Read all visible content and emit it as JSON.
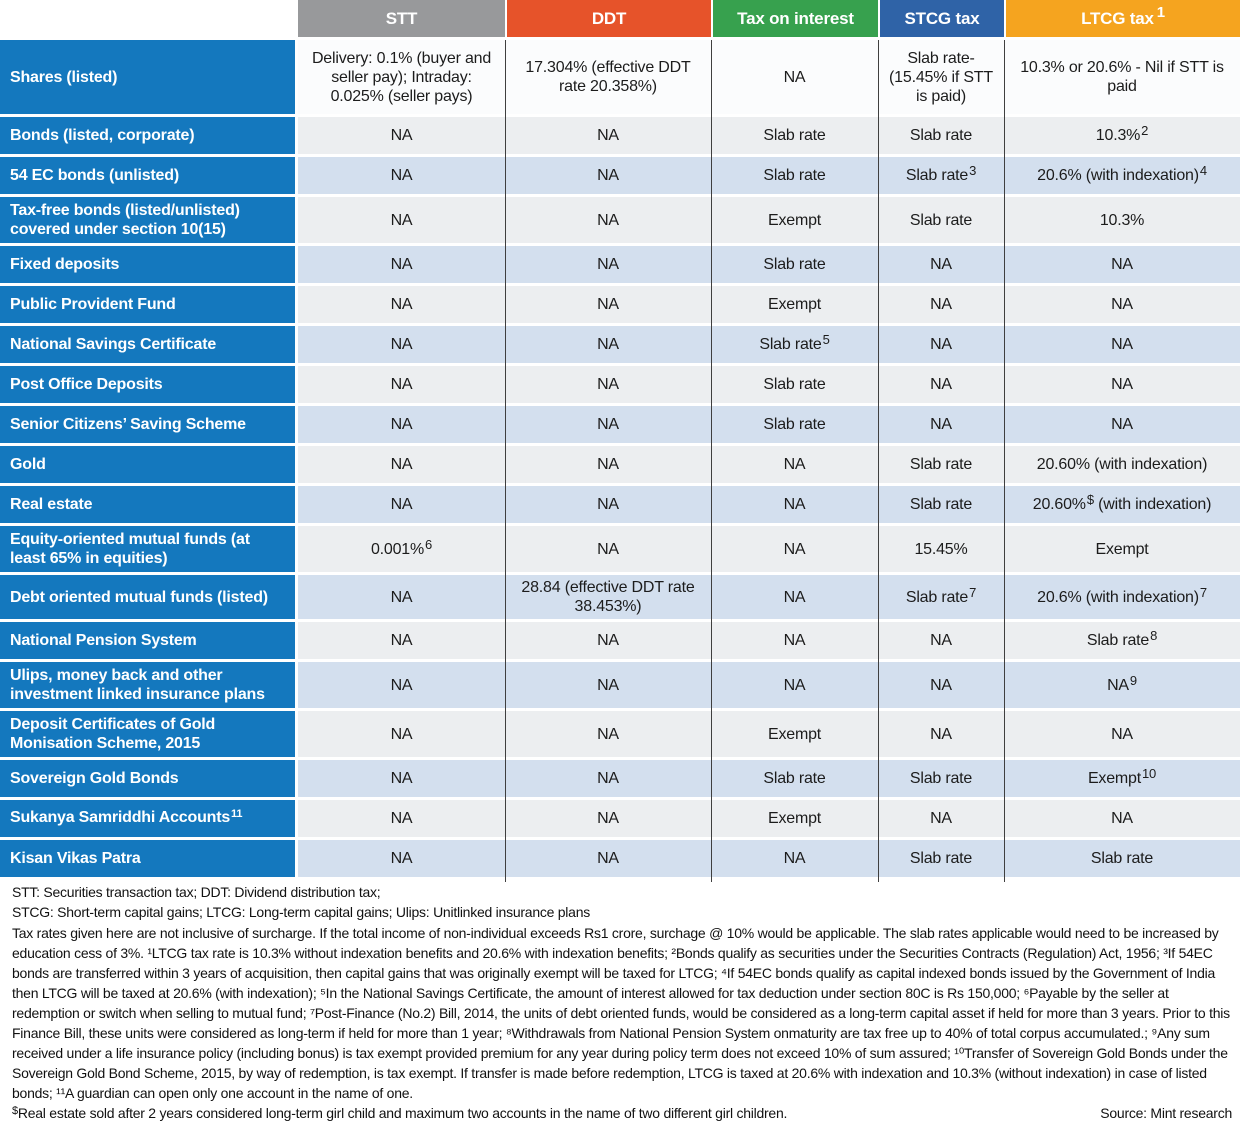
{
  "table": {
    "label_column_color": "#1478be",
    "row_colors": {
      "first": "#fbfcfd",
      "gray": "#eceef0",
      "blue": "#d3dfee"
    },
    "divider_color": "#3f3f3f",
    "columns": [
      {
        "key": "stt",
        "label": "STT",
        "color": "#98999b"
      },
      {
        "key": "ddt",
        "label": "DDT",
        "color": "#e6532a"
      },
      {
        "key": "interest",
        "label": "Tax on interest",
        "color": "#37a14e"
      },
      {
        "key": "stcg",
        "label": "STCG tax",
        "color": "#2f63a7"
      },
      {
        "key": "ltcg",
        "label": "LTCG tax",
        "sup": "1",
        "color": "#f5a41f"
      }
    ],
    "rows": [
      {
        "label": "Shares (listed)",
        "cells": [
          {
            "t": "Delivery: 0.1% (buyer and seller pay); Intraday: 0.025% (seller pays)"
          },
          {
            "t": "17.304% (effective DDT rate 20.358%)"
          },
          {
            "t": "NA"
          },
          {
            "t": "Slab rate- (15.45% if STT is paid)"
          },
          {
            "t": "10.3% or 20.6% - Nil if STT is paid"
          }
        ]
      },
      {
        "label": "Bonds (listed, corporate)",
        "cells": [
          {
            "t": "NA"
          },
          {
            "t": "NA"
          },
          {
            "t": "Slab rate"
          },
          {
            "t": "Slab rate"
          },
          {
            "t": "10.3%",
            "sup": "2"
          }
        ]
      },
      {
        "label": "54 EC bonds (unlisted)",
        "cells": [
          {
            "t": "NA"
          },
          {
            "t": "NA"
          },
          {
            "t": "Slab rate"
          },
          {
            "t": "Slab rate",
            "sup": "3"
          },
          {
            "t": "20.6% (with indexation)",
            "sup": "4"
          }
        ]
      },
      {
        "label": "Tax-free bonds (listed/unlisted) covered under section 10(15)",
        "cells": [
          {
            "t": "NA"
          },
          {
            "t": "NA"
          },
          {
            "t": "Exempt"
          },
          {
            "t": "Slab rate"
          },
          {
            "t": "10.3%"
          }
        ]
      },
      {
        "label": "Fixed deposits",
        "cells": [
          {
            "t": "NA"
          },
          {
            "t": "NA"
          },
          {
            "t": "Slab rate"
          },
          {
            "t": "NA"
          },
          {
            "t": "NA"
          }
        ]
      },
      {
        "label": "Public Provident Fund",
        "cells": [
          {
            "t": "NA"
          },
          {
            "t": "NA"
          },
          {
            "t": "Exempt"
          },
          {
            "t": "NA"
          },
          {
            "t": "NA"
          }
        ]
      },
      {
        "label": "National Savings Certificate",
        "cells": [
          {
            "t": "NA"
          },
          {
            "t": "NA"
          },
          {
            "t": "Slab rate",
            "sup": "5"
          },
          {
            "t": "NA"
          },
          {
            "t": "NA"
          }
        ]
      },
      {
        "label": "Post Office Deposits",
        "cells": [
          {
            "t": "NA"
          },
          {
            "t": "NA"
          },
          {
            "t": "Slab rate"
          },
          {
            "t": "NA"
          },
          {
            "t": "NA"
          }
        ]
      },
      {
        "label": "Senior Citizens’ Saving Scheme",
        "cells": [
          {
            "t": "NA"
          },
          {
            "t": "NA"
          },
          {
            "t": "Slab rate"
          },
          {
            "t": "NA"
          },
          {
            "t": "NA"
          }
        ]
      },
      {
        "label": "Gold",
        "cells": [
          {
            "t": "NA"
          },
          {
            "t": "NA"
          },
          {
            "t": "NA"
          },
          {
            "t": "Slab rate"
          },
          {
            "t": "20.60% (with indexation)"
          }
        ]
      },
      {
        "label": "Real estate",
        "cells": [
          {
            "t": "NA"
          },
          {
            "t": "NA"
          },
          {
            "t": "NA"
          },
          {
            "t": "Slab rate"
          },
          {
            "t": "20.60%",
            "sup": "$",
            "tail": " (with indexation)"
          }
        ]
      },
      {
        "label": "Equity-oriented mutual funds (at least 65% in equities)",
        "cells": [
          {
            "t": "0.001%",
            "sup": "6"
          },
          {
            "t": "NA"
          },
          {
            "t": "NA"
          },
          {
            "t": "15.45%"
          },
          {
            "t": "Exempt"
          }
        ]
      },
      {
        "label": "Debt oriented mutual funds (listed)",
        "cells": [
          {
            "t": "NA"
          },
          {
            "t": "28.84 (effective DDT rate 38.453%)"
          },
          {
            "t": "NA"
          },
          {
            "t": "Slab rate",
            "sup": "7"
          },
          {
            "t": "20.6% (with indexation)",
            "sup": "7"
          }
        ]
      },
      {
        "label": "National Pension System",
        "cells": [
          {
            "t": "NA"
          },
          {
            "t": "NA"
          },
          {
            "t": "NA"
          },
          {
            "t": "NA"
          },
          {
            "t": "Slab rate",
            "sup": "8"
          }
        ]
      },
      {
        "label": "Ulips, money back and other investment linked insurance plans",
        "cells": [
          {
            "t": "NA"
          },
          {
            "t": "NA"
          },
          {
            "t": "NA"
          },
          {
            "t": "NA"
          },
          {
            "t": "NA",
            "sup": "9"
          }
        ]
      },
      {
        "label": "Deposit Certificates of Gold Monisation Scheme, 2015",
        "cells": [
          {
            "t": "NA"
          },
          {
            "t": "NA"
          },
          {
            "t": "Exempt"
          },
          {
            "t": "NA"
          },
          {
            "t": "NA"
          }
        ]
      },
      {
        "label": "Sovereign Gold Bonds",
        "cells": [
          {
            "t": "NA"
          },
          {
            "t": "NA"
          },
          {
            "t": "Slab rate"
          },
          {
            "t": "Slab rate"
          },
          {
            "t": "Exempt",
            "sup": "10"
          }
        ]
      },
      {
        "label": "Sukanya Samriddhi Accounts",
        "label_sup": "11",
        "cells": [
          {
            "t": "NA"
          },
          {
            "t": "NA"
          },
          {
            "t": "Exempt"
          },
          {
            "t": "NA"
          },
          {
            "t": "NA"
          }
        ]
      },
      {
        "label": "Kisan Vikas Patra",
        "cells": [
          {
            "t": "NA"
          },
          {
            "t": "NA"
          },
          {
            "t": "NA"
          },
          {
            "t": "Slab rate"
          },
          {
            "t": "Slab rate"
          }
        ]
      }
    ]
  },
  "footnotes": {
    "line1": "STT: Securities transaction tax; DDT: Dividend distribution tax;",
    "line2": "STCG: Short-term capital gains; LTCG: Long-term capital gains; Ulips: Unitlinked insurance plans",
    "paragraph": "Tax rates given here are not inclusive of surcharge. If the total income of non-individual exceeds Rs1 crore, surchage @ 10% would be applicable. The slab rates applicable would need to be increased by education cess of 3%. ¹LTCG tax rate is 10.3% without indexation benefits and 20.6% with indexation benefits; ²Bonds qualify as securities under the Securities Contracts (Regulation) Act, 1956; ³If 54EC bonds are transferred within 3 years of acquisition, then capital gains that was originally exempt will be taxed for LTCG; ⁴If 54EC bonds qualify as capital indexed bonds issued by the Government of India then LTCG will be taxed at 20.6% (with indexation); ⁵In the National Savings Certificate, the amount of interest allowed for tax deduction under section 80C is Rs 150,000; ⁶Payable by the seller at redemption or switch when selling to mutual fund; ⁷Post-Finance (No.2) Bill, 2014, the units of debt oriented funds, would be considered as a long-term capital asset if held for more than 3 years. Prior to this Finance Bill, these units were considered as long-term if held for more than 1 year; ⁸Withdrawals from National Pension System onmaturity are tax free up to 40% of total corpus accumulated.; ⁹Any sum received under a life insurance policy (including bonus) is tax exempt provided premium for any year during policy term does not exceed 10% of sum assured; ¹⁰Transfer of Sovereign Gold Bonds under the Sovereign Gold Bond Scheme, 2015, by way of redemption, is tax exempt. If transfer is made before redemption, LTCG is taxed at 20.6% with indexation and 10.3% (without indexation) in case of listed bonds; ¹¹A guardian can open only one account in the name of one.",
    "dollar_sup": "$",
    "dollar_note": "Real estate sold after 2 years considered long-term girl child and maximum two accounts in the name of two different girl children.",
    "source": "Source: Mint research"
  },
  "chart_data": {
    "type": "table",
    "title": "",
    "headers": [
      "",
      "STT",
      "DDT",
      "Tax on interest",
      "STCG tax",
      "LTCG tax¹"
    ],
    "rows": [
      [
        "Shares (listed)",
        "Delivery: 0.1% (buyer and seller pay); Intraday: 0.025% (seller pays)",
        "17.304% (effective DDT rate 20.358%)",
        "NA",
        "Slab rate- (15.45% if STT is paid)",
        "10.3% or 20.6% - Nil if STT is paid"
      ],
      [
        "Bonds (listed, corporate)",
        "NA",
        "NA",
        "Slab rate",
        "Slab rate",
        "10.3%²"
      ],
      [
        "54 EC bonds (unlisted)",
        "NA",
        "NA",
        "Slab rate",
        "Slab rate³",
        "20.6% (with indexation)⁴"
      ],
      [
        "Tax-free bonds (listed/unlisted) covered under section 10(15)",
        "NA",
        "NA",
        "Exempt",
        "Slab rate",
        "10.3%"
      ],
      [
        "Fixed deposits",
        "NA",
        "NA",
        "Slab rate",
        "NA",
        "NA"
      ],
      [
        "Public Provident Fund",
        "NA",
        "NA",
        "Exempt",
        "NA",
        "NA"
      ],
      [
        "National Savings Certificate",
        "NA",
        "NA",
        "Slab rate⁵",
        "NA",
        "NA"
      ],
      [
        "Post Office Deposits",
        "NA",
        "NA",
        "Slab rate",
        "NA",
        "NA"
      ],
      [
        "Senior Citizens’ Saving Scheme",
        "NA",
        "NA",
        "Slab rate",
        "NA",
        "NA"
      ],
      [
        "Gold",
        "NA",
        "NA",
        "NA",
        "Slab rate",
        "20.60% (with indexation)"
      ],
      [
        "Real estate",
        "NA",
        "NA",
        "NA",
        "Slab rate",
        "20.60%$ (with indexation)"
      ],
      [
        "Equity-oriented mutual funds (at least 65% in equities)",
        "0.001%⁶",
        "NA",
        "NA",
        "15.45%",
        "Exempt"
      ],
      [
        "Debt oriented mutual funds (listed)",
        "NA",
        "28.84 (effective DDT rate 38.453%)",
        "NA",
        "Slab rate⁷",
        "20.6% (with indexation)⁷"
      ],
      [
        "National Pension System",
        "NA",
        "NA",
        "NA",
        "NA",
        "Slab rate⁸"
      ],
      [
        "Ulips, money back and other investment linked insurance plans",
        "NA",
        "NA",
        "NA",
        "NA",
        "NA⁹"
      ],
      [
        "Deposit Certificates of Gold Monisation Scheme, 2015",
        "NA",
        "NA",
        "Exempt",
        "NA",
        "NA"
      ],
      [
        "Sovereign Gold Bonds",
        "NA",
        "NA",
        "Slab rate",
        "Slab rate",
        "Exempt¹⁰"
      ],
      [
        "Sukanya Samriddhi Accounts¹¹",
        "NA",
        "NA",
        "Exempt",
        "NA",
        "NA"
      ],
      [
        "Kisan Vikas Patra",
        "NA",
        "NA",
        "NA",
        "Slab rate",
        "Slab rate"
      ]
    ],
    "source": "Source: Mint research",
    "legend_position": "none",
    "grid": true
  }
}
